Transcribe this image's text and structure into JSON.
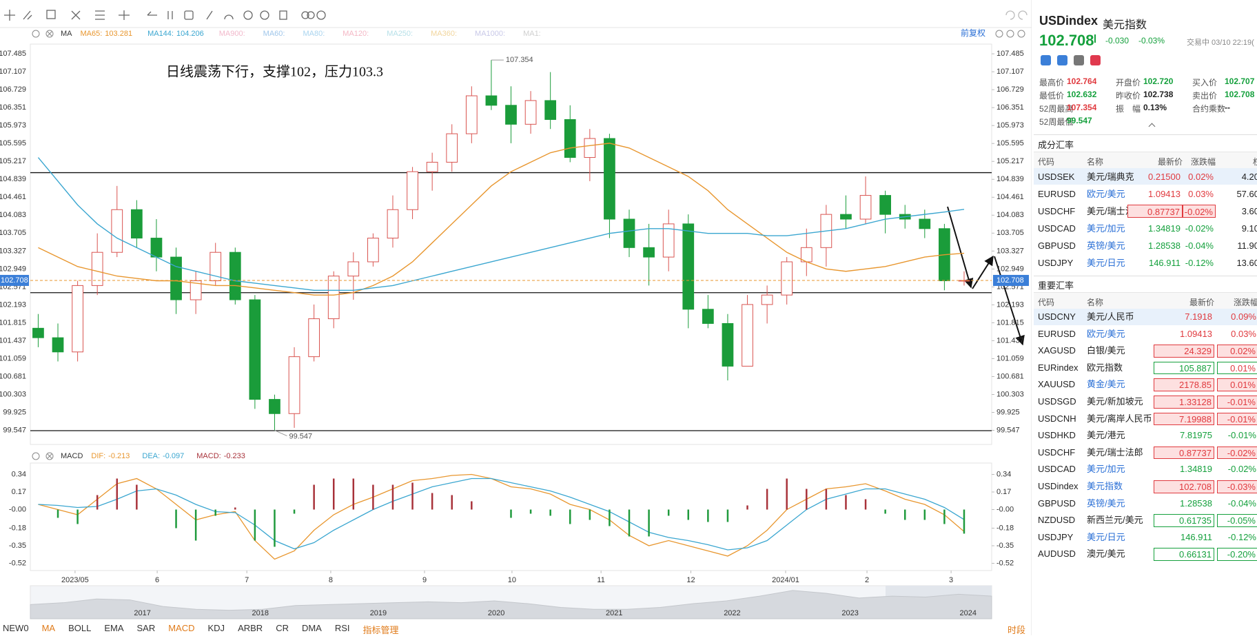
{
  "toolbar": {
    "adjust": "前复权"
  },
  "annotation": "日线震荡下行，支撑102，压力103.3",
  "chart_data": [
    {
      "type": "candlestick",
      "legend_title": "MA",
      "ylim": [
        99.25,
        107.69
      ],
      "yticks": [
        107.485,
        107.107,
        106.729,
        106.351,
        105.973,
        105.595,
        105.217,
        104.839,
        104.461,
        104.083,
        103.705,
        103.327,
        102.949,
        102.571,
        102.193,
        101.815,
        101.437,
        101.059,
        100.681,
        100.303,
        99.925,
        99.547
      ],
      "xlim": [
        -0.4,
        48.4
      ],
      "xticks": [
        {
          "value": 1.87,
          "label": "2023/05"
        },
        {
          "value": 6.04,
          "label": "6"
        },
        {
          "value": 10.59,
          "label": "7"
        },
        {
          "value": 14.85,
          "label": "8"
        },
        {
          "value": 19.61,
          "label": "9"
        },
        {
          "value": 24.05,
          "label": "10"
        },
        {
          "value": 28.57,
          "label": "11"
        },
        {
          "value": 33.13,
          "label": "12"
        },
        {
          "value": 37.94,
          "label": "2024/01"
        },
        {
          "value": 42.07,
          "label": "2"
        },
        {
          "value": 46.34,
          "label": "3"
        }
      ],
      "up_color": "#d9534f",
      "down_color": "#1a9c3a",
      "price_line_color": "#e8962e",
      "price_label_color": "#3b7fd8",
      "candles": [
        [
          101.7,
          102.0,
          101.3,
          101.5
        ],
        [
          101.5,
          101.8,
          101.0,
          101.2
        ],
        [
          101.2,
          102.7,
          101.0,
          102.6
        ],
        [
          102.6,
          103.7,
          102.4,
          103.3
        ],
        [
          103.3,
          104.7,
          103.2,
          104.2
        ],
        [
          104.2,
          104.4,
          103.4,
          103.6
        ],
        [
          103.6,
          104.0,
          102.9,
          103.2
        ],
        [
          103.2,
          103.4,
          102.0,
          102.3
        ],
        [
          102.3,
          102.9,
          102.0,
          102.7
        ],
        [
          102.7,
          103.5,
          102.6,
          103.3
        ],
        [
          103.3,
          103.4,
          102.2,
          102.3
        ],
        [
          102.3,
          102.4,
          100.0,
          100.2
        ],
        [
          100.2,
          100.3,
          99.547,
          99.9
        ],
        [
          99.9,
          101.3,
          99.6,
          101.1
        ],
        [
          101.1,
          102.2,
          101.0,
          101.9
        ],
        [
          101.9,
          102.9,
          101.7,
          102.8
        ],
        [
          102.8,
          103.3,
          102.3,
          103.1
        ],
        [
          103.1,
          103.7,
          103.0,
          103.6
        ],
        [
          103.6,
          104.5,
          103.4,
          104.2
        ],
        [
          104.2,
          105.1,
          104.0,
          105.0
        ],
        [
          105.0,
          105.4,
          104.6,
          105.2
        ],
        [
          105.2,
          106.0,
          105.0,
          105.8
        ],
        [
          105.8,
          106.8,
          105.6,
          106.6
        ],
        [
          106.6,
          107.354,
          106.3,
          106.4
        ],
        [
          106.4,
          106.8,
          105.6,
          106.0
        ],
        [
          106.0,
          106.7,
          105.8,
          106.5
        ],
        [
          106.5,
          107.1,
          105.9,
          106.1
        ],
        [
          106.1,
          106.4,
          105.2,
          105.3
        ],
        [
          105.3,
          105.9,
          104.8,
          105.7
        ],
        [
          105.7,
          105.8,
          103.6,
          104.0
        ],
        [
          104.0,
          104.2,
          103.2,
          103.4
        ],
        [
          103.4,
          103.9,
          102.6,
          103.2
        ],
        [
          103.2,
          104.2,
          102.9,
          103.9
        ],
        [
          103.9,
          104.1,
          101.7,
          102.1
        ],
        [
          102.1,
          102.4,
          101.7,
          101.8
        ],
        [
          101.8,
          102.0,
          100.6,
          100.9
        ],
        [
          100.9,
          102.4,
          100.9,
          102.2
        ],
        [
          102.2,
          102.6,
          101.8,
          102.4
        ],
        [
          102.4,
          103.2,
          102.2,
          103.1
        ],
        [
          103.1,
          103.8,
          102.8,
          103.4
        ],
        [
          103.4,
          104.3,
          103.0,
          104.1
        ],
        [
          104.1,
          104.5,
          103.8,
          104.0
        ],
        [
          104.0,
          104.9,
          103.9,
          104.5
        ],
        [
          104.5,
          104.6,
          103.7,
          104.1
        ],
        [
          104.1,
          104.3,
          103.8,
          104.0
        ],
        [
          104.0,
          104.2,
          103.6,
          103.8
        ],
        [
          103.8,
          103.9,
          102.5,
          102.7
        ],
        [
          102.7,
          102.9,
          102.6,
          102.708
        ]
      ],
      "series": [
        {
          "name": "MA65:",
          "color": "#e8962e",
          "values": [
            103.4,
            103.2,
            103.0,
            102.9,
            102.8,
            102.75,
            102.7,
            102.7,
            102.65,
            102.6,
            102.6,
            102.55,
            102.5,
            102.45,
            102.4,
            102.4,
            102.45,
            102.6,
            102.8,
            103.1,
            103.5,
            103.9,
            104.3,
            104.7,
            105.0,
            105.2,
            105.4,
            105.5,
            105.55,
            105.6,
            105.5,
            105.3,
            105.1,
            104.9,
            104.6,
            104.2,
            103.9,
            103.6,
            103.3,
            103.1,
            102.95,
            102.9,
            102.95,
            103.0,
            103.1,
            103.2,
            103.25,
            103.281
          ]
        },
        {
          "name": "MA144:",
          "color": "#3aa6d0",
          "values": [
            105.3,
            104.8,
            104.3,
            103.9,
            103.6,
            103.4,
            103.2,
            103.0,
            102.9,
            102.8,
            102.7,
            102.65,
            102.6,
            102.55,
            102.5,
            102.5,
            102.5,
            102.55,
            102.6,
            102.7,
            102.8,
            102.9,
            103.0,
            103.1,
            103.2,
            103.3,
            103.4,
            103.5,
            103.6,
            103.7,
            103.75,
            103.8,
            103.8,
            103.75,
            103.7,
            103.7,
            103.7,
            103.65,
            103.65,
            103.7,
            103.75,
            103.8,
            103.9,
            104.0,
            104.05,
            104.1,
            104.15,
            104.206
          ]
        }
      ],
      "inactive": [
        {
          "name": "MA900:",
          "color": "#f2b8cb"
        },
        {
          "name": "MA60:",
          "color": "#9fc6ea"
        },
        {
          "name": "MA80:",
          "color": "#a9d4ef"
        },
        {
          "name": "MA120:",
          "color": "#f4b6c4"
        },
        {
          "name": "MA250:",
          "color": "#b6e0e8"
        },
        {
          "name": "MA360:",
          "color": "#f1d59c"
        },
        {
          "name": "MA1000:",
          "color": "#c8c8e8"
        },
        {
          "name": "MA1:",
          "color": "#cfcfcf"
        }
      ],
      "hlines": [
        104.98,
        102.45,
        99.54
      ]
    },
    {
      "type": "macd",
      "legend_title": "MACD",
      "ylim": [
        -0.59,
        0.45
      ],
      "yticks": [
        0.34,
        0.17,
        {
          "value": 0,
          "label": "-0.00"
        },
        -0.18,
        -0.35,
        -0.52
      ],
      "xlim": [
        -0.4,
        48.4
      ],
      "series": [
        {
          "name": "DIF:",
          "color": "#e8962e",
          "values": [
            0.05,
            0.0,
            -0.05,
            0.1,
            0.25,
            0.3,
            0.2,
            0.05,
            -0.1,
            -0.05,
            -0.02,
            -0.3,
            -0.48,
            -0.4,
            -0.2,
            -0.05,
            0.05,
            0.12,
            0.2,
            0.28,
            0.3,
            0.33,
            0.34,
            0.3,
            0.22,
            0.2,
            0.15,
            0.05,
            0.0,
            -0.1,
            -0.25,
            -0.35,
            -0.3,
            -0.35,
            -0.4,
            -0.45,
            -0.35,
            -0.2,
            0.0,
            0.1,
            0.2,
            0.22,
            0.25,
            0.18,
            0.1,
            0.05,
            -0.05,
            -0.213
          ]
        },
        {
          "name": "DEA:",
          "color": "#3aa6d0",
          "values": [
            0.05,
            0.04,
            0.02,
            0.03,
            0.1,
            0.18,
            0.2,
            0.14,
            0.05,
            -0.02,
            -0.03,
            -0.15,
            -0.3,
            -0.38,
            -0.32,
            -0.2,
            -0.1,
            0.0,
            0.08,
            0.15,
            0.22,
            0.26,
            0.3,
            0.3,
            0.26,
            0.22,
            0.18,
            0.12,
            0.05,
            -0.02,
            -0.12,
            -0.22,
            -0.27,
            -0.3,
            -0.34,
            -0.39,
            -0.37,
            -0.3,
            -0.15,
            0.0,
            0.1,
            0.15,
            0.2,
            0.2,
            0.15,
            0.1,
            0.02,
            -0.097
          ]
        },
        {
          "name": "MACD:",
          "color": "#a8323a",
          "negative_color": "#1f9a3c",
          "bars": true,
          "values": [
            0,
            -0.08,
            -0.14,
            0.14,
            0.3,
            0.24,
            0,
            -0.18,
            -0.3,
            -0.06,
            0.02,
            -0.3,
            -0.36,
            -0.04,
            0.24,
            0.3,
            0.3,
            0.24,
            0.24,
            0.26,
            0.16,
            0.14,
            0.08,
            0,
            -0.08,
            -0.04,
            -0.06,
            -0.14,
            -0.1,
            -0.16,
            -0.26,
            -0.26,
            -0.06,
            -0.1,
            -0.12,
            -0.12,
            0.04,
            0.2,
            0.3,
            0.2,
            0.2,
            0.14,
            0.1,
            -0.04,
            -0.1,
            -0.1,
            -0.14,
            -0.233
          ]
        }
      ]
    }
  ],
  "overview": {
    "labels": [
      "2017",
      "2018",
      "2019",
      "2020",
      "2021",
      "2022",
      "2023",
      "2024"
    ],
    "ylim": [
      80,
      115
    ],
    "values": [
      95,
      97,
      101,
      100,
      93,
      90,
      89,
      90,
      94,
      95,
      96,
      97,
      98,
      97,
      99,
      96,
      92,
      90,
      90,
      92,
      96,
      99,
      104,
      110,
      107,
      102,
      104,
      103,
      106,
      104
    ]
  },
  "tabs": {
    "items": [
      {
        "label": "NEW0",
        "active": false
      },
      {
        "label": "MA",
        "active": true
      },
      {
        "label": "BOLL",
        "active": false
      },
      {
        "label": "EMA",
        "active": false
      },
      {
        "label": "SAR",
        "active": false
      },
      {
        "label": "MACD",
        "active": true
      },
      {
        "label": "KDJ",
        "active": false
      },
      {
        "label": "ARBR",
        "active": false
      },
      {
        "label": "CR",
        "active": false
      },
      {
        "label": "DMA",
        "active": false
      },
      {
        "label": "RSI",
        "active": false
      },
      {
        "label": "指标管理",
        "active": true
      }
    ],
    "right": "时段"
  },
  "quote": {
    "symbol": "USDindex",
    "name": "美元指数",
    "price": "102.708",
    "change": "-0.030",
    "change_pct": "-0.03%",
    "status": "交易中 03/10 22:19(",
    "stats": [
      {
        "label": "最高价",
        "value": "102.764",
        "dir": "up"
      },
      {
        "label": "开盘价",
        "value": "102.720",
        "dir": "down"
      },
      {
        "label": "买入价",
        "value": "102.707",
        "dir": "down"
      },
      {
        "label": "最低价",
        "value": "102.632",
        "dir": "down"
      },
      {
        "label": "昨收价",
        "value": "102.738",
        "dir": "flat"
      },
      {
        "label": "卖出价",
        "value": "102.708",
        "dir": "down"
      },
      {
        "label": "52周最高",
        "value": "107.354",
        "dir": "up"
      },
      {
        "label": "振　幅",
        "value": "0.13%",
        "dir": "flat"
      },
      {
        "label": "合约乘数",
        "value": "--",
        "dir": "flat"
      },
      {
        "label": "52周最低",
        "value": "99.547",
        "dir": "down"
      }
    ]
  },
  "components": {
    "title": "成分汇率",
    "headers": [
      "代码",
      "名称",
      "最新价",
      "涨跌幅",
      "权"
    ],
    "rows": [
      {
        "code": "USDSEK",
        "name": "美元/瑞典克",
        "price": "0.21500",
        "change": "0.02%",
        "weight": "4.20",
        "dir": "up",
        "box": null,
        "link": false
      },
      {
        "code": "EURUSD",
        "name": "欧元/美元",
        "price": "1.09413",
        "change": "0.03%",
        "weight": "57.60",
        "dir": "up",
        "box": null,
        "link": true
      },
      {
        "code": "USDCHF",
        "name": "美元/瑞士法",
        "price": "0.87737",
        "change": "-0.02%",
        "weight": "3.60",
        "dir": "down",
        "box": "red",
        "link": false
      },
      {
        "code": "USDCAD",
        "name": "美元/加元",
        "price": "1.34819",
        "change": "-0.02%",
        "weight": "9.10",
        "dir": "down",
        "box": null,
        "link": true
      },
      {
        "code": "GBPUSD",
        "name": "英镑/美元",
        "price": "1.28538",
        "change": "-0.04%",
        "weight": "11.90",
        "dir": "down",
        "box": null,
        "link": true
      },
      {
        "code": "USDJPY",
        "name": "美元/日元",
        "price": "146.911",
        "change": "-0.12%",
        "weight": "13.60",
        "dir": "down",
        "box": null,
        "link": true
      }
    ]
  },
  "rates": {
    "title": "重要汇率",
    "headers": [
      "代码",
      "名称",
      "最新价",
      "涨跌幅"
    ],
    "rows": [
      {
        "code": "USDCNY",
        "name": "美元/人民币",
        "price": "7.1918",
        "change": "0.09%",
        "dir": "up",
        "box": null,
        "link": false
      },
      {
        "code": "EURUSD",
        "name": "欧元/美元",
        "price": "1.09413",
        "change": "0.03%",
        "dir": "up",
        "box": null,
        "link": true
      },
      {
        "code": "XAGUSD",
        "name": "白银/美元",
        "price": "24.329",
        "change": "0.02%",
        "dir": "up",
        "box": "red",
        "link": false
      },
      {
        "code": "EURindex",
        "name": "欧元指数",
        "price": "105.887",
        "change": "0.01%",
        "dir": "up",
        "box": "green",
        "link": false
      },
      {
        "code": "XAUUSD",
        "name": "黄金/美元",
        "price": "2178.85",
        "change": "0.01%",
        "dir": "up",
        "box": "red",
        "link": true
      },
      {
        "code": "USDSGD",
        "name": "美元/新加坡元",
        "price": "1.33128",
        "change": "-0.01%",
        "dir": "down",
        "box": "red",
        "link": false
      },
      {
        "code": "USDCNH",
        "name": "美元/离岸人民币",
        "price": "7.19988",
        "change": "-0.01%",
        "dir": "down",
        "box": "red",
        "link": false
      },
      {
        "code": "USDHKD",
        "name": "美元/港元",
        "price": "7.81975",
        "change": "-0.01%",
        "dir": "down",
        "box": null,
        "link": false
      },
      {
        "code": "USDCHF",
        "name": "美元/瑞士法郎",
        "price": "0.87737",
        "change": "-0.02%",
        "dir": "down",
        "box": "red",
        "link": false
      },
      {
        "code": "USDCAD",
        "name": "美元/加元",
        "price": "1.34819",
        "change": "-0.02%",
        "dir": "down",
        "box": null,
        "link": true
      },
      {
        "code": "USDindex",
        "name": "美元指数",
        "price": "102.708",
        "change": "-0.03%",
        "dir": "down",
        "box": "red",
        "link": true
      },
      {
        "code": "GBPUSD",
        "name": "英镑/美元",
        "price": "1.28538",
        "change": "-0.04%",
        "dir": "down",
        "box": null,
        "link": true
      },
      {
        "code": "NZDUSD",
        "name": "新西兰元/美元",
        "price": "0.61735",
        "change": "-0.05%",
        "dir": "down",
        "box": "green",
        "link": false
      },
      {
        "code": "USDJPY",
        "name": "美元/日元",
        "price": "146.911",
        "change": "-0.12%",
        "dir": "down",
        "box": null,
        "link": true
      },
      {
        "code": "AUDUSD",
        "name": "澳元/美元",
        "price": "0.66131",
        "change": "-0.20%",
        "dir": "down",
        "box": "green",
        "link": false
      }
    ]
  }
}
